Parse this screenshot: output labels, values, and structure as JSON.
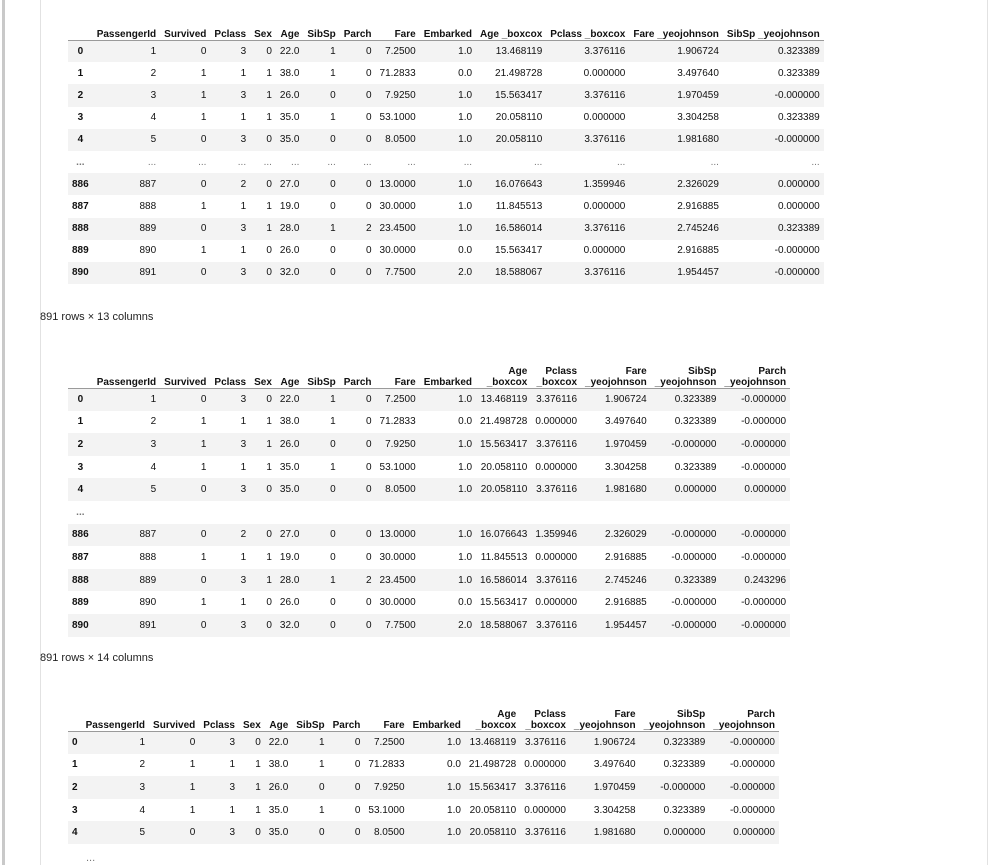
{
  "table1": {
    "columns": [
      "PassengerId",
      "Survived",
      "Pclass",
      "Sex",
      "Age",
      "SibSp",
      "Parch",
      "Fare",
      "Embarked",
      "Age _boxcox",
      "Pclass _boxcox",
      "Fare _yeojohnson",
      "SibSp _yeojohnson"
    ],
    "rows": [
      {
        "index": "0",
        "cells": [
          "1",
          "0",
          "3",
          "0",
          "22.0",
          "1",
          "0",
          "7.2500",
          "1.0",
          "13.468119",
          "3.376116",
          "1.906724",
          "0.323389"
        ]
      },
      {
        "index": "1",
        "cells": [
          "2",
          "1",
          "1",
          "1",
          "38.0",
          "1",
          "0",
          "71.2833",
          "0.0",
          "21.498728",
          "0.000000",
          "3.497640",
          "0.323389"
        ]
      },
      {
        "index": "2",
        "cells": [
          "3",
          "1",
          "3",
          "1",
          "26.0",
          "0",
          "0",
          "7.9250",
          "1.0",
          "15.563417",
          "3.376116",
          "1.970459",
          "-0.000000"
        ]
      },
      {
        "index": "3",
        "cells": [
          "4",
          "1",
          "1",
          "1",
          "35.0",
          "1",
          "0",
          "53.1000",
          "1.0",
          "20.058110",
          "0.000000",
          "3.304258",
          "0.323389"
        ]
      },
      {
        "index": "4",
        "cells": [
          "5",
          "0",
          "3",
          "0",
          "35.0",
          "0",
          "0",
          "8.0500",
          "1.0",
          "20.058110",
          "3.376116",
          "1.981680",
          "-0.000000"
        ]
      },
      {
        "index": "...",
        "cells": [
          "...",
          "...",
          "...",
          "...",
          "...",
          "...",
          "...",
          "...",
          "...",
          "...",
          "...",
          "...",
          "..."
        ]
      },
      {
        "index": "886",
        "cells": [
          "887",
          "0",
          "2",
          "0",
          "27.0",
          "0",
          "0",
          "13.0000",
          "1.0",
          "16.076643",
          "1.359946",
          "2.326029",
          "0.000000"
        ]
      },
      {
        "index": "887",
        "cells": [
          "888",
          "1",
          "1",
          "1",
          "19.0",
          "0",
          "0",
          "30.0000",
          "1.0",
          "11.845513",
          "0.000000",
          "2.916885",
          "0.000000"
        ]
      },
      {
        "index": "888",
        "cells": [
          "889",
          "0",
          "3",
          "1",
          "28.0",
          "1",
          "2",
          "23.4500",
          "1.0",
          "16.586014",
          "3.376116",
          "2.745246",
          "0.323389"
        ]
      },
      {
        "index": "889",
        "cells": [
          "890",
          "1",
          "1",
          "0",
          "26.0",
          "0",
          "0",
          "30.0000",
          "0.0",
          "15.563417",
          "0.000000",
          "2.916885",
          "-0.000000"
        ]
      },
      {
        "index": "890",
        "cells": [
          "891",
          "0",
          "3",
          "0",
          "32.0",
          "0",
          "0",
          "7.7500",
          "2.0",
          "18.588067",
          "3.376116",
          "1.954457",
          "-0.000000"
        ]
      }
    ],
    "caption": "891 rows × 13 columns"
  },
  "table2": {
    "columns": [
      "PassengerId",
      "Survived",
      "Pclass",
      "Sex",
      "Age",
      "SibSp",
      "Parch",
      "Fare",
      "Embarked",
      "Age\n_boxcox",
      "Pclass\n_boxcox",
      "Fare\n_yeojohnson",
      "SibSp\n_yeojohnson",
      "Parch\n_yeojohnson"
    ],
    "rows": [
      {
        "index": "0",
        "cells": [
          "1",
          "0",
          "3",
          "0",
          "22.0",
          "1",
          "0",
          "7.2500",
          "1.0",
          "13.468119",
          "3.376116",
          "1.906724",
          "0.323389",
          "-0.000000"
        ]
      },
      {
        "index": "1",
        "cells": [
          "2",
          "1",
          "1",
          "1",
          "38.0",
          "1",
          "0",
          "71.2833",
          "0.0",
          "21.498728",
          "0.000000",
          "3.497640",
          "0.323389",
          "-0.000000"
        ]
      },
      {
        "index": "2",
        "cells": [
          "3",
          "1",
          "3",
          "1",
          "26.0",
          "0",
          "0",
          "7.9250",
          "1.0",
          "15.563417",
          "3.376116",
          "1.970459",
          "-0.000000",
          "-0.000000"
        ]
      },
      {
        "index": "3",
        "cells": [
          "4",
          "1",
          "1",
          "1",
          "35.0",
          "1",
          "0",
          "53.1000",
          "1.0",
          "20.058110",
          "0.000000",
          "3.304258",
          "0.323389",
          "-0.000000"
        ]
      },
      {
        "index": "4",
        "cells": [
          "5",
          "0",
          "3",
          "0",
          "35.0",
          "0",
          "0",
          "8.0500",
          "1.0",
          "20.058110",
          "3.376116",
          "1.981680",
          "0.000000",
          "0.000000"
        ]
      },
      {
        "index": "...",
        "cells": [
          "",
          "",
          "",
          "",
          "",
          "",
          "",
          "",
          "",
          "",
          "",
          "",
          "",
          ""
        ]
      },
      {
        "index": "886",
        "cells": [
          "887",
          "0",
          "2",
          "0",
          "27.0",
          "0",
          "0",
          "13.0000",
          "1.0",
          "16.076643",
          "1.359946",
          "2.326029",
          "-0.000000",
          "-0.000000"
        ]
      },
      {
        "index": "887",
        "cells": [
          "888",
          "1",
          "1",
          "1",
          "19.0",
          "0",
          "0",
          "30.0000",
          "1.0",
          "11.845513",
          "0.000000",
          "2.916885",
          "-0.000000",
          "-0.000000"
        ]
      },
      {
        "index": "888",
        "cells": [
          "889",
          "0",
          "3",
          "1",
          "28.0",
          "1",
          "2",
          "23.4500",
          "1.0",
          "16.586014",
          "3.376116",
          "2.745246",
          "0.323389",
          "0.243296"
        ]
      },
      {
        "index": "889",
        "cells": [
          "890",
          "1",
          "1",
          "0",
          "26.0",
          "0",
          "0",
          "30.0000",
          "0.0",
          "15.563417",
          "0.000000",
          "2.916885",
          "-0.000000",
          "-0.000000"
        ]
      },
      {
        "index": "890",
        "cells": [
          "891",
          "0",
          "3",
          "0",
          "32.0",
          "0",
          "0",
          "7.7500",
          "2.0",
          "18.588067",
          "3.376116",
          "1.954457",
          "-0.000000",
          "-0.000000"
        ]
      }
    ],
    "caption": "891 rows × 14 columns"
  },
  "table3": {
    "columns": [
      "PassengerId",
      "Survived",
      "Pclass",
      "Sex",
      "Age",
      "SibSp",
      "Parch",
      "Fare",
      "Embarked",
      "Age\n_boxcox",
      "Pclass\n_boxcox",
      "Fare\n_yeojohnson",
      "SibSp\n_yeojohnson",
      "Parch\n_yeojohnson"
    ],
    "rows": [
      {
        "index": "0",
        "cells": [
          "1",
          "0",
          "3",
          "0",
          "22.0",
          "1",
          "0",
          "7.2500",
          "1.0",
          "13.468119",
          "3.376116",
          "1.906724",
          "0.323389",
          "-0.000000"
        ]
      },
      {
        "index": "1",
        "cells": [
          "2",
          "1",
          "1",
          "1",
          "38.0",
          "1",
          "0",
          "71.2833",
          "0.0",
          "21.498728",
          "0.000000",
          "3.497640",
          "0.323389",
          "-0.000000"
        ]
      },
      {
        "index": "2",
        "cells": [
          "3",
          "1",
          "3",
          "1",
          "26.0",
          "0",
          "0",
          "7.9250",
          "1.0",
          "15.563417",
          "3.376116",
          "1.970459",
          "-0.000000",
          "-0.000000"
        ]
      },
      {
        "index": "3",
        "cells": [
          "4",
          "1",
          "1",
          "1",
          "35.0",
          "1",
          "0",
          "53.1000",
          "1.0",
          "20.058110",
          "0.000000",
          "3.304258",
          "0.323389",
          "-0.000000"
        ]
      },
      {
        "index": "4",
        "cells": [
          "5",
          "0",
          "3",
          "0",
          "35.0",
          "0",
          "0",
          "8.0500",
          "1.0",
          "20.058110",
          "3.376116",
          "1.981680",
          "0.000000",
          "0.000000"
        ]
      }
    ],
    "trailing": "..."
  }
}
